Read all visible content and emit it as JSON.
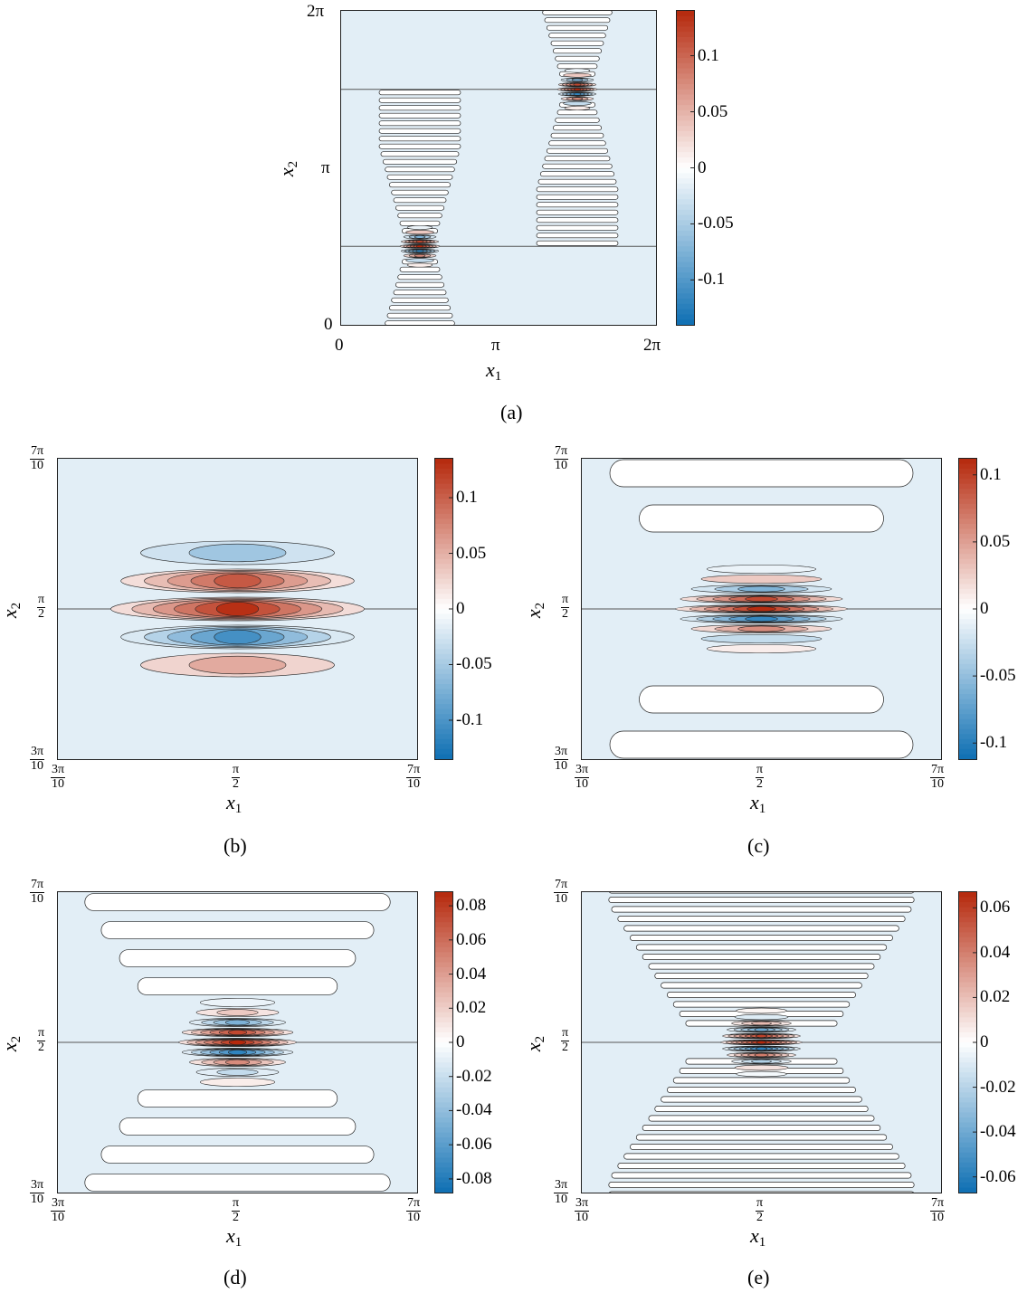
{
  "chart_data": [
    {
      "type": "heatmap",
      "panel_label": "(a)",
      "xlabel": "x1",
      "ylabel": "x2",
      "xticks": [
        "0",
        "π",
        "2π"
      ],
      "yticks": [
        "0",
        "π",
        "2π"
      ],
      "xlim": [
        0,
        6.283
      ],
      "ylim": [
        0,
        6.283
      ],
      "colorbar_ticks": [
        "-0.1",
        "-0.05",
        "0",
        "0.05",
        "0.1"
      ],
      "colorbar_tick_values": [
        -0.1,
        -0.05,
        0,
        0.05,
        0.1
      ],
      "colorbar_range": [
        -0.14,
        0.14
      ],
      "colormap": [
        "#0e6fb3",
        "#ffffff",
        "#b5280c"
      ],
      "peaks": [
        {
          "x": 1.571,
          "y": 1.571,
          "amplitude": 0.14
        },
        {
          "x": 4.712,
          "y": 4.712,
          "amplitude": 0.14
        }
      ],
      "discontinuity_lines_y": [
        1.571,
        4.712
      ]
    },
    {
      "type": "heatmap",
      "panel_label": "(b)",
      "xlabel": "x1",
      "ylabel": "x2",
      "xticks": [
        "3π/10",
        "π/2",
        "7π/10"
      ],
      "yticks": [
        "3π/10",
        "π/2",
        "7π/10"
      ],
      "xlim": [
        0.942,
        2.199
      ],
      "ylim": [
        0.942,
        2.199
      ],
      "colorbar_ticks": [
        "-0.1",
        "-0.05",
        "0",
        "0.05",
        "0.1"
      ],
      "colorbar_tick_values": [
        -0.1,
        -0.05,
        0,
        0.05,
        0.1
      ],
      "colorbar_range": [
        -0.135,
        0.135
      ],
      "colormap": [
        "#0e6fb3",
        "#ffffff",
        "#b5280c"
      ],
      "peak_amplitude": 0.13
    },
    {
      "type": "heatmap",
      "panel_label": "(c)",
      "xlabel": "x1",
      "ylabel": "x2",
      "xticks": [
        "3π/10",
        "π/2",
        "7π/10"
      ],
      "yticks": [
        "3π/10",
        "π/2",
        "7π/10"
      ],
      "xlim": [
        0.942,
        2.199
      ],
      "ylim": [
        0.942,
        2.199
      ],
      "colorbar_ticks": [
        "-0.1",
        "-0.05",
        "0",
        "0.05",
        "0.1"
      ],
      "colorbar_tick_values": [
        -0.1,
        -0.05,
        0,
        0.05,
        0.1
      ],
      "colorbar_range": [
        -0.112,
        0.112
      ],
      "colormap": [
        "#0e6fb3",
        "#ffffff",
        "#b5280c"
      ],
      "peak_amplitude": 0.11
    },
    {
      "type": "heatmap",
      "panel_label": "(d)",
      "xlabel": "x1",
      "ylabel": "x2",
      "xticks": [
        "3π/10",
        "π/2",
        "7π/10"
      ],
      "yticks": [
        "3π/10",
        "π/2",
        "7π/10"
      ],
      "xlim": [
        0.942,
        2.199
      ],
      "ylim": [
        0.942,
        2.199
      ],
      "colorbar_ticks": [
        "-0.08",
        "-0.06",
        "-0.04",
        "-0.02",
        "0",
        "0.02",
        "0.04",
        "0.06",
        "0.08"
      ],
      "colorbar_tick_values": [
        -0.08,
        -0.06,
        -0.04,
        -0.02,
        0,
        0.02,
        0.04,
        0.06,
        0.08
      ],
      "colorbar_range": [
        -0.088,
        0.088
      ],
      "colormap": [
        "#0e6fb3",
        "#ffffff",
        "#b5280c"
      ],
      "peak_amplitude": 0.088
    },
    {
      "type": "heatmap",
      "panel_label": "(e)",
      "xlabel": "x1",
      "ylabel": "x2",
      "xticks": [
        "3π/10",
        "π/2",
        "7π/10"
      ],
      "yticks": [
        "3π/10",
        "π/2",
        "7π/10"
      ],
      "xlim": [
        0.942,
        2.199
      ],
      "ylim": [
        0.942,
        2.199
      ],
      "colorbar_ticks": [
        "-0.06",
        "-0.04",
        "-0.02",
        "0",
        "0.02",
        "0.04",
        "0.06"
      ],
      "colorbar_tick_values": [
        -0.06,
        -0.04,
        -0.02,
        0,
        0.02,
        0.04,
        0.06
      ],
      "colorbar_range": [
        -0.067,
        0.067
      ],
      "colormap": [
        "#0e6fb3",
        "#ffffff",
        "#b5280c"
      ],
      "peak_amplitude": 0.067
    }
  ]
}
